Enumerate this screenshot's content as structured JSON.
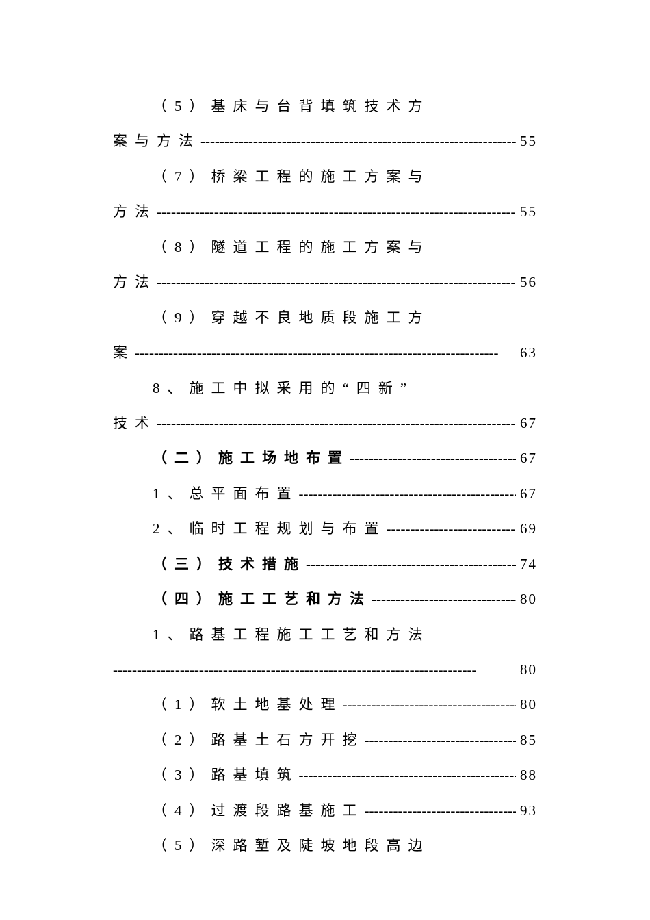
{
  "entries": [
    {
      "type": "two-line",
      "line1_indent": "indent-1",
      "line1_text": "（5）基床与台背填筑技术方",
      "line2_text": "案与方法",
      "page": "55",
      "bold": false
    },
    {
      "type": "two-line",
      "line1_indent": "indent-1",
      "line1_text": "（7）桥梁工程的施工方案与",
      "line2_text": "方法",
      "page": "55",
      "bold": false
    },
    {
      "type": "two-line",
      "line1_indent": "indent-1",
      "line1_text": "（8）隧道工程的施工方案与",
      "line2_text": "方法",
      "page": "56",
      "bold": false
    },
    {
      "type": "two-line",
      "line1_indent": "indent-1",
      "line1_text": "（9）穿越不良地质段施工方",
      "line2_text": "案",
      "page": "63",
      "bold": false
    },
    {
      "type": "two-line",
      "line1_indent": "indent-1",
      "line1_text": "8、施工中拟采用的“四新”",
      "line2_text": "技术",
      "page": "67",
      "bold": false
    },
    {
      "type": "single",
      "indent": "indent-1",
      "text": "（二）施工场地布置",
      "page": "67",
      "bold": true
    },
    {
      "type": "single",
      "indent": "indent-1",
      "text": "1、总平面布置",
      "page": "67",
      "bold": false
    },
    {
      "type": "single",
      "indent": "indent-1",
      "text": "2、临时工程规划与布置",
      "page": "69",
      "bold": false
    },
    {
      "type": "single",
      "indent": "indent-1",
      "text": "（三）技术措施",
      "page": "74",
      "bold": true
    },
    {
      "type": "single",
      "indent": "indent-1",
      "text": "（四）施工工艺和方法",
      "page": "80",
      "bold": true
    },
    {
      "type": "two-line-full",
      "line1_indent": "indent-1",
      "line1_text": "1、路基工程施工工艺和方法",
      "page": "80",
      "bold": false
    },
    {
      "type": "single",
      "indent": "indent-1",
      "text": "（1）软土地基处理",
      "page": "80",
      "bold": false
    },
    {
      "type": "single",
      "indent": "indent-1",
      "text": "（2）路基土石方开挖",
      "page": "85",
      "bold": false
    },
    {
      "type": "single",
      "indent": "indent-1",
      "text": "（3）路基填筑",
      "page": "88",
      "bold": false
    },
    {
      "type": "single",
      "indent": "indent-1",
      "text": "（4）过渡段路基施工",
      "page": "93",
      "bold": false
    },
    {
      "type": "single-noleader",
      "indent": "indent-1",
      "text": "（5）深路堑及陡坡地段高边",
      "bold": false
    }
  ]
}
